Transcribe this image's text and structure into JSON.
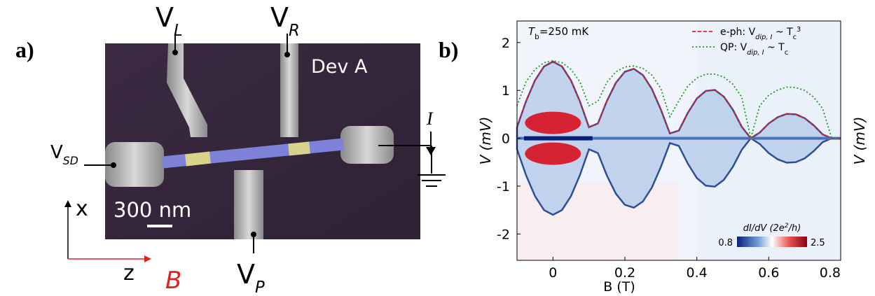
{
  "panel_a": {
    "panel_label": "a)",
    "device": "Dev A",
    "scale_bar": "300 nm",
    "gates": {
      "left": [
        "V",
        "L"
      ],
      "right": [
        "V",
        "R"
      ],
      "plunger": [
        "V",
        "P"
      ],
      "source_drain": [
        "V",
        "SD"
      ]
    },
    "current": "I",
    "axis_x": "x",
    "axis_z": "z",
    "field": "B"
  },
  "chart_data": {
    "type": "line",
    "panel_label": "b)",
    "annotation": [
      "T",
      "b",
      "=250 mK"
    ],
    "x_label": "B (T)",
    "y_label": "V (mV)",
    "xlim": [
      -0.1,
      0.8
    ],
    "xticks": [
      0,
      0.2,
      0.4,
      0.6,
      0.8
    ],
    "ylim": [
      -2.55,
      2.45
    ],
    "yticks": [
      -2,
      -1,
      0,
      1,
      2
    ],
    "x": [
      -0.1,
      -0.075,
      -0.05,
      -0.025,
      0,
      0.025,
      0.05,
      0.075,
      0.1,
      0.125,
      0.15,
      0.175,
      0.2,
      0.225,
      0.25,
      0.275,
      0.3,
      0.325,
      0.35,
      0.375,
      0.4,
      0.425,
      0.45,
      0.475,
      0.5,
      0.525,
      0.55,
      0.575,
      0.6,
      0.625,
      0.65,
      0.675,
      0.7,
      0.725,
      0.75,
      0.775,
      0.8
    ],
    "series": [
      {
        "name": [
          "e-ph: V",
          "dip, I",
          " ~ T",
          "c",
          "3"
        ],
        "color": "#e0202a",
        "dash": "5,3",
        "values": [
          0.23,
          0.77,
          1.21,
          1.5,
          1.6,
          1.5,
          1.21,
          0.77,
          0.23,
          0.31,
          0.78,
          1.16,
          1.39,
          1.45,
          1.32,
          1.03,
          0.6,
          0.1,
          0.16,
          0.53,
          0.83,
          0.99,
          1.01,
          0.87,
          0.6,
          0.24,
          0,
          0.12,
          0.31,
          0.44,
          0.51,
          0.5,
          0.42,
          0.27,
          0.08,
          0,
          0
        ]
      },
      {
        "name": [
          "QP: V",
          "dip, I",
          " ~ T",
          "c"
        ],
        "color": "#1a9a1a",
        "dash": "2,3",
        "values": [
          0.68,
          1.18,
          1.44,
          1.58,
          1.62,
          1.58,
          1.44,
          1.18,
          0.68,
          0.77,
          1.17,
          1.39,
          1.49,
          1.51,
          1.46,
          1.32,
          1.04,
          0.45,
          0.78,
          1.09,
          1.26,
          1.34,
          1.34,
          1.28,
          1.13,
          0.86,
          0,
          0.68,
          0.9,
          1.01,
          1.07,
          1.06,
          1.0,
          0.86,
          0.62,
          0,
          0
        ]
      }
    ],
    "colorbar": {
      "label": [
        "dI/dV (2e",
        "2",
        "/h)"
      ],
      "min": 0.8,
      "max": 2.5
    }
  }
}
